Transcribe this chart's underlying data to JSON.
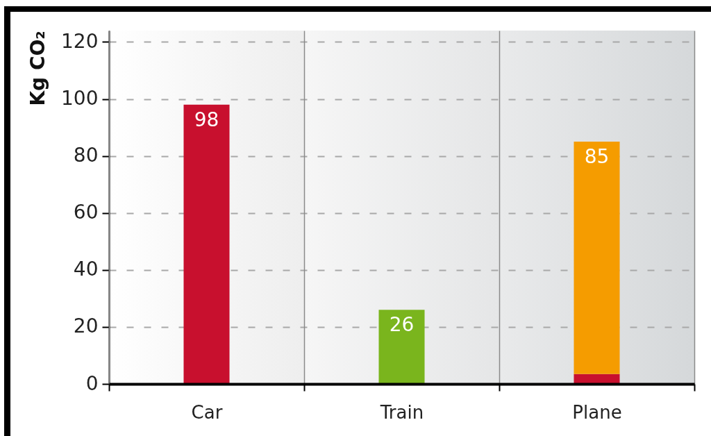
{
  "chart_data": {
    "type": "bar",
    "categories": [
      "Car",
      "Train",
      "Plane"
    ],
    "series": [
      {
        "color": "#c8102e",
        "values": [
          98,
          null,
          3.5
        ]
      },
      {
        "color": "#7ab51d",
        "values": [
          null,
          26,
          null
        ]
      },
      {
        "color": "#f59c00",
        "values": [
          null,
          null,
          81.5
        ]
      }
    ],
    "stacked": true,
    "totals": [
      "98",
      "26",
      "85"
    ],
    "ylabel": "Kg CO₂",
    "ylim": [
      0,
      124
    ],
    "yticks": [
      0,
      20,
      40,
      60,
      80,
      100,
      120
    ],
    "grid": true
  }
}
